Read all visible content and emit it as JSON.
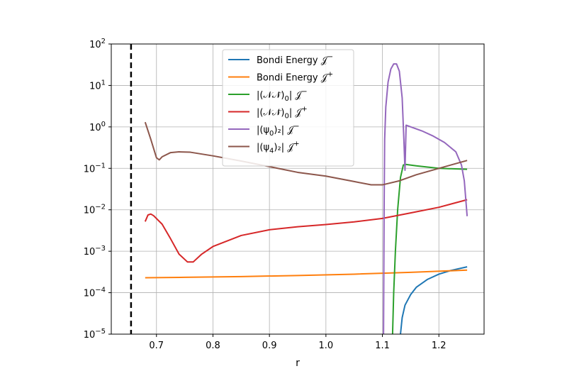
{
  "chart_data": {
    "type": "line",
    "title": "",
    "xlabel": "r",
    "ylabel": "",
    "xlim": [
      0.62,
      1.28
    ],
    "ylim": [
      1e-05,
      100
    ],
    "yscale": "log",
    "grid": true,
    "legend_position": "upper-center",
    "x_ticks": [
      0.7,
      0.8,
      0.9,
      1.0,
      1.1,
      1.2
    ],
    "x_tick_labels": [
      "0.7",
      "0.8",
      "0.9",
      "1.0",
      "1.1",
      "1.2"
    ],
    "y_ticks": [
      {
        "value": 1e-05,
        "base": "10",
        "exp": "−5"
      },
      {
        "value": 0.0001,
        "base": "10",
        "exp": "−4"
      },
      {
        "value": 0.001,
        "base": "10",
        "exp": "−3"
      },
      {
        "value": 0.01,
        "base": "10",
        "exp": "−2"
      },
      {
        "value": 0.1,
        "base": "10",
        "exp": "−1"
      },
      {
        "value": 1,
        "base": "10",
        "exp": "0"
      },
      {
        "value": 10,
        "base": "10",
        "exp": "1"
      },
      {
        "value": 100,
        "base": "10",
        "exp": "2"
      }
    ],
    "vertical_line": {
      "x": 0.655,
      "style": "dashed",
      "color": "#000000"
    },
    "series": [
      {
        "name": "Bondi Energy 𝒥⁻",
        "legend": {
          "main": "Bondi Energy 𝒥",
          "sup": "−",
          "sub": ""
        },
        "color": "#1f77b4",
        "points": [
          [
            1.132,
            1e-05
          ],
          [
            1.135,
            2.5e-05
          ],
          [
            1.14,
            5e-05
          ],
          [
            1.15,
            9e-05
          ],
          [
            1.16,
            0.000135
          ],
          [
            1.18,
            0.00021
          ],
          [
            1.2,
            0.00028
          ],
          [
            1.22,
            0.00034
          ],
          [
            1.25,
            0.00042
          ]
        ]
      },
      {
        "name": "Bondi Energy 𝒥⁺",
        "legend": {
          "main": "Bondi Energy 𝒥",
          "sup": "+",
          "sub": ""
        },
        "color": "#ff7f0e",
        "points": [
          [
            0.68,
            0.00023
          ],
          [
            0.75,
            0.000235
          ],
          [
            0.85,
            0.000245
          ],
          [
            0.95,
            0.00026
          ],
          [
            1.05,
            0.00028
          ],
          [
            1.15,
            0.00031
          ],
          [
            1.25,
            0.00035
          ]
        ]
      },
      {
        "name": "|(𝒩𝒩̄)₀| 𝒥⁻",
        "legend": {
          "main": "|(𝒩𝒩̄)",
          "sub": "0",
          "tail": "| 𝒥",
          "sup": "−"
        },
        "color": "#2ca02c",
        "points": [
          [
            1.118,
            1e-05
          ],
          [
            1.12,
            0.0001
          ],
          [
            1.123,
            0.001
          ],
          [
            1.127,
            0.01
          ],
          [
            1.132,
            0.06
          ],
          [
            1.137,
            0.12
          ],
          [
            1.14,
            0.125
          ],
          [
            1.16,
            0.115
          ],
          [
            1.2,
            0.1
          ],
          [
            1.25,
            0.095
          ]
        ]
      },
      {
        "name": "|(𝒩𝒩̄)₀| 𝒥⁺",
        "legend": {
          "main": "|(𝒩𝒩̄)",
          "sub": "0",
          "tail": "| 𝒥",
          "sup": "+"
        },
        "color": "#d62728",
        "points": [
          [
            0.68,
            0.0052
          ],
          [
            0.685,
            0.0075
          ],
          [
            0.69,
            0.0079
          ],
          [
            0.695,
            0.0072
          ],
          [
            0.71,
            0.0045
          ],
          [
            0.725,
            0.002
          ],
          [
            0.74,
            0.00085
          ],
          [
            0.755,
            0.00055
          ],
          [
            0.765,
            0.00055
          ],
          [
            0.78,
            0.00085
          ],
          [
            0.8,
            0.0013
          ],
          [
            0.85,
            0.0024
          ],
          [
            0.9,
            0.0033
          ],
          [
            0.95,
            0.0039
          ],
          [
            1.0,
            0.0044
          ],
          [
            1.05,
            0.0051
          ],
          [
            1.1,
            0.0062
          ],
          [
            1.15,
            0.0084
          ],
          [
            1.2,
            0.0115
          ],
          [
            1.25,
            0.0175
          ]
        ]
      },
      {
        "name": "|(ψ₀)₂| 𝒥⁻",
        "legend": {
          "main": "|(ψ",
          "sub": "0",
          "tail": ")₂| 𝒥",
          "sup": "−"
        },
        "color": "#9467bd",
        "points": [
          [
            1.102,
            1e-05
          ],
          [
            1.103,
            0.01
          ],
          [
            1.104,
            0.5
          ],
          [
            1.106,
            3
          ],
          [
            1.11,
            12
          ],
          [
            1.115,
            25
          ],
          [
            1.12,
            33
          ],
          [
            1.125,
            33
          ],
          [
            1.13,
            22
          ],
          [
            1.135,
            5
          ],
          [
            1.138,
            0.5
          ],
          [
            1.14,
            0.09
          ],
          [
            1.142,
            1.1
          ],
          [
            1.15,
            1.0
          ],
          [
            1.17,
            0.8
          ],
          [
            1.19,
            0.6
          ],
          [
            1.21,
            0.42
          ],
          [
            1.23,
            0.25
          ],
          [
            1.24,
            0.12
          ],
          [
            1.245,
            0.05
          ],
          [
            1.25,
            0.007
          ]
        ]
      },
      {
        "name": "|(ψ₄)₂| 𝒥⁺",
        "legend": {
          "main": "|(ψ",
          "sub": "4",
          "tail": ")₂| 𝒥",
          "sup": "+"
        },
        "color": "#8c564b",
        "points": [
          [
            0.68,
            1.3
          ],
          [
            0.69,
            0.5
          ],
          [
            0.7,
            0.18
          ],
          [
            0.705,
            0.16
          ],
          [
            0.71,
            0.19
          ],
          [
            0.725,
            0.24
          ],
          [
            0.74,
            0.25
          ],
          [
            0.76,
            0.245
          ],
          [
            0.8,
            0.2
          ],
          [
            0.85,
            0.15
          ],
          [
            0.9,
            0.11
          ],
          [
            0.95,
            0.08
          ],
          [
            1.0,
            0.065
          ],
          [
            1.05,
            0.048
          ],
          [
            1.08,
            0.04
          ],
          [
            1.1,
            0.04
          ],
          [
            1.13,
            0.05
          ],
          [
            1.16,
            0.07
          ],
          [
            1.2,
            0.1
          ],
          [
            1.25,
            0.155
          ]
        ]
      }
    ]
  }
}
